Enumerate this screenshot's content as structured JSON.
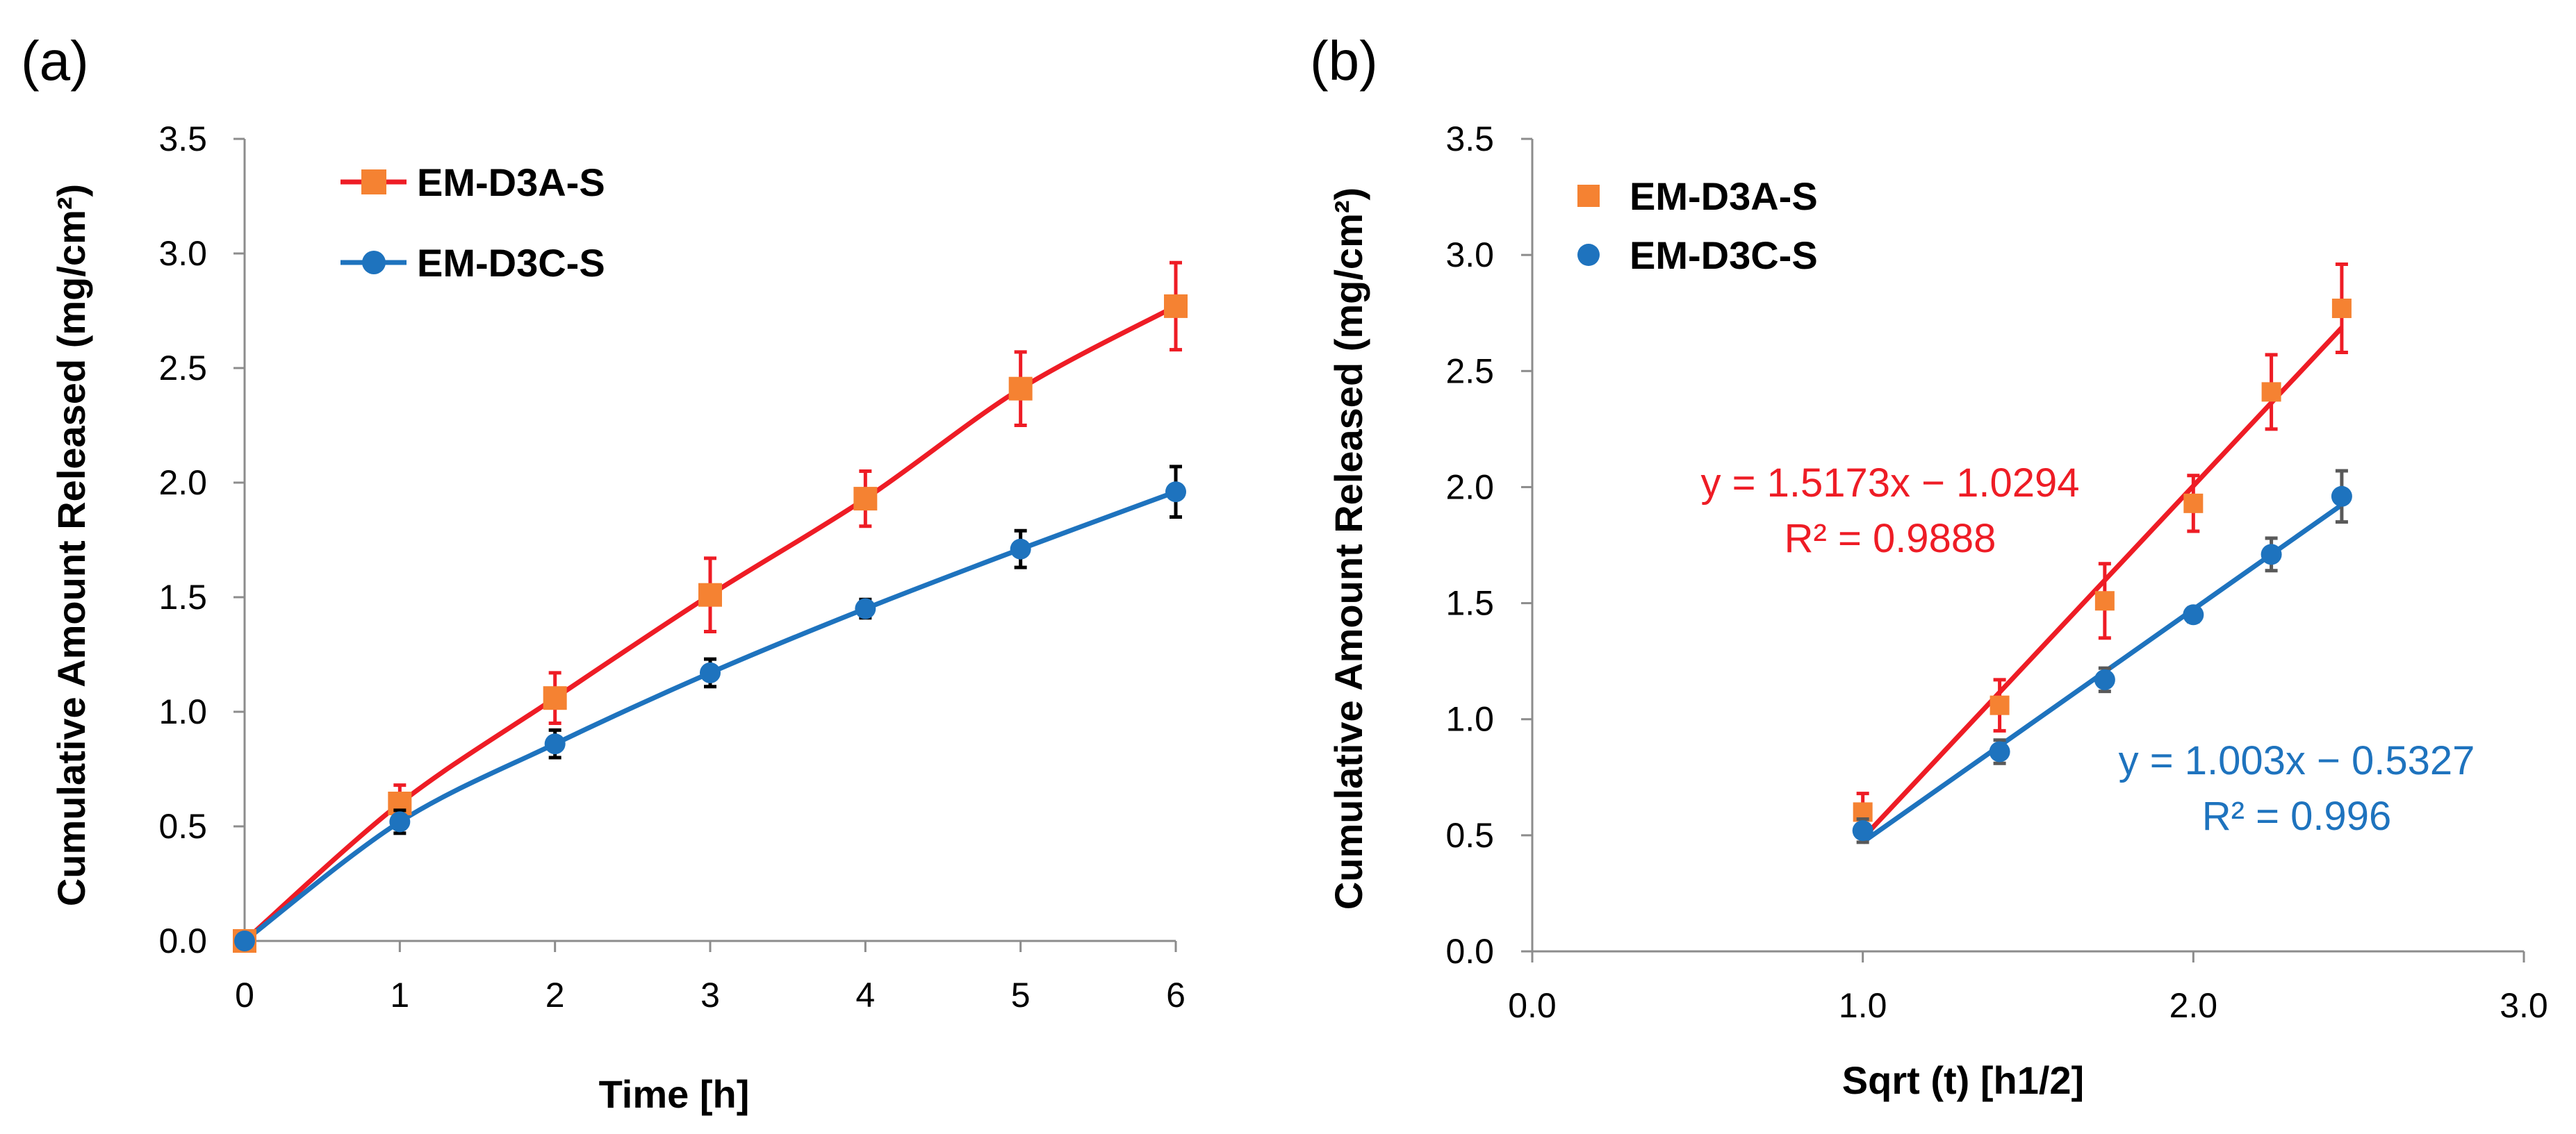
{
  "chart_data": [
    {
      "type": "line",
      "panel_label": "(a)",
      "xlabel": "Time [h]",
      "ylabel": "Cumulative Amount Released  (mg/cm²)",
      "xlim": [
        0,
        6
      ],
      "ylim": [
        0,
        3.5
      ],
      "x_ticks": [
        "0",
        "1",
        "2",
        "3",
        "4",
        "5",
        "6"
      ],
      "y_ticks": [
        "0.0",
        "0.5",
        "1.0",
        "1.5",
        "2.0",
        "2.5",
        "3.0",
        "3.5"
      ],
      "legend_position": "top-left",
      "x": [
        0,
        1,
        2,
        3,
        4,
        5,
        6
      ],
      "series": [
        {
          "name": "EM-D3A-S",
          "marker": "square",
          "marker_color": "#F58232",
          "line_color": "#EE1C25",
          "error_color": "#EE1C25",
          "values": [
            0.0,
            0.6,
            1.06,
            1.51,
            1.93,
            2.41,
            2.77
          ],
          "errors": [
            0.0,
            0.08,
            0.11,
            0.16,
            0.12,
            0.16,
            0.19
          ]
        },
        {
          "name": "EM-D3C-S",
          "marker": "circle",
          "marker_color": "#1E73BE",
          "line_color": "#1E73BE",
          "error_color": "#000000",
          "values": [
            0.0,
            0.52,
            0.86,
            1.17,
            1.45,
            1.71,
            1.96
          ],
          "errors": [
            0.0,
            0.05,
            0.06,
            0.06,
            0.04,
            0.08,
            0.11
          ]
        }
      ]
    },
    {
      "type": "scatter",
      "panel_label": "(b)",
      "xlabel": "Sqrt (t) [h1/2]",
      "ylabel": "Cumulative Amount Released (mg/cm²)",
      "xlim": [
        0,
        3.0
      ],
      "ylim": [
        0,
        3.5
      ],
      "x_ticks": [
        "0.0",
        "1.0",
        "2.0",
        "3.0"
      ],
      "y_ticks": [
        "0.0",
        "0.5",
        "1.0",
        "1.5",
        "2.0",
        "2.5",
        "3.0",
        "3.5"
      ],
      "legend_position": "top-left",
      "series": [
        {
          "name": "EM-D3A-S",
          "marker": "square",
          "marker_color": "#F58232",
          "error_color": "#EE1C25",
          "x": [
            1.0,
            1.414,
            1.732,
            2.0,
            2.236,
            2.449
          ],
          "values": [
            0.6,
            1.06,
            1.51,
            1.93,
            2.41,
            2.77
          ],
          "errors": [
            0.08,
            0.11,
            0.16,
            0.12,
            0.16,
            0.19
          ],
          "trendline": {
            "slope": 1.5173,
            "intercept": -1.0294,
            "x_range": [
              1.0,
              2.449
            ],
            "color": "#EE1C25"
          },
          "equation": "y = 1.5173x − 1.0294",
          "r_squared": "R² = 0.9888"
        },
        {
          "name": "EM-D3C-S",
          "marker": "circle",
          "marker_color": "#1E73BE",
          "error_color": "#595959",
          "x": [
            1.0,
            1.414,
            1.732,
            2.0,
            2.236,
            2.449
          ],
          "values": [
            0.52,
            0.86,
            1.17,
            1.45,
            1.71,
            1.96
          ],
          "errors": [
            0.05,
            0.05,
            0.05,
            0.03,
            0.07,
            0.11
          ],
          "trendline": {
            "slope": 1.003,
            "intercept": -0.5327,
            "x_range": [
              1.0,
              2.449
            ],
            "color": "#1E73BE"
          },
          "equation": "y = 1.003x − 0.5327",
          "r_squared": "R² = 0.996"
        }
      ]
    }
  ]
}
